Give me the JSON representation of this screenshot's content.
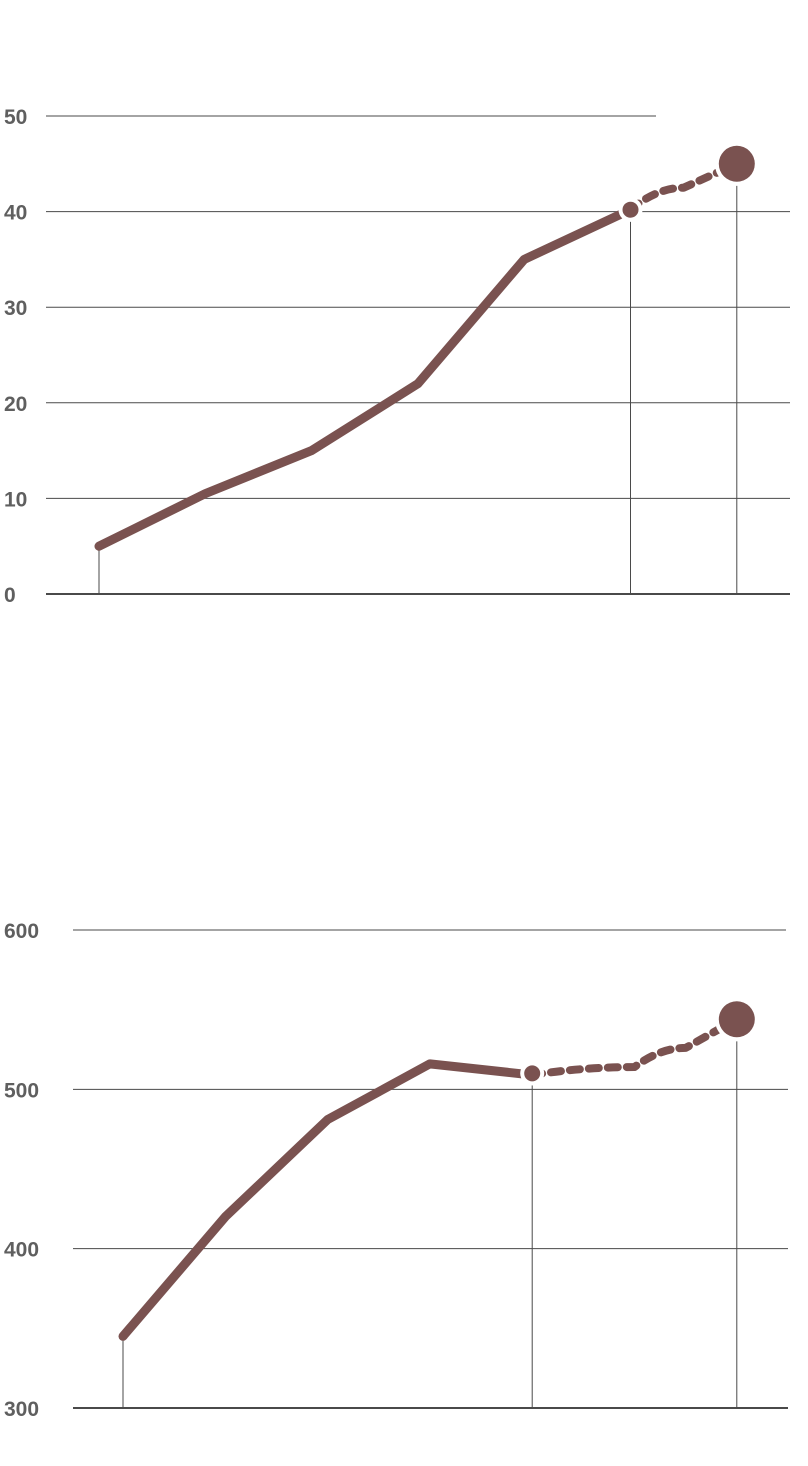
{
  "colors": {
    "series": "#7a5250",
    "grid": "#4a4a4a",
    "tick_text": "#5f5f5f",
    "background": "#ffffff"
  },
  "chart_data": [
    {
      "type": "line",
      "title": "",
      "xlabel": "",
      "ylabel": "",
      "ylim": [
        0,
        50
      ],
      "yticks": [
        "0",
        "10",
        "20",
        "30",
        "40",
        "50"
      ],
      "grid": true,
      "legend": "none",
      "series": [
        {
          "style": "solid",
          "x": [
            0,
            1,
            2,
            3,
            4,
            5
          ],
          "values": [
            5,
            10.5,
            15,
            22,
            35,
            40.2
          ]
        },
        {
          "style": "dotted",
          "x": [
            5,
            5.5,
            6
          ],
          "values": [
            40.2,
            42.5,
            45
          ]
        }
      ],
      "markers": [
        {
          "x": 5,
          "value": 40.2,
          "size": "small"
        },
        {
          "x": 6,
          "value": 45,
          "size": "large"
        }
      ],
      "droplines_at_x": [
        0,
        5,
        6
      ]
    },
    {
      "type": "line",
      "title": "",
      "xlabel": "",
      "ylabel": "",
      "ylim": [
        300,
        600
      ],
      "yticks": [
        "300",
        "400",
        "500",
        "600"
      ],
      "grid": true,
      "legend": "none",
      "series": [
        {
          "style": "solid",
          "x": [
            0,
            1,
            2,
            3,
            4
          ],
          "values": [
            345,
            420,
            481,
            516,
            509
          ]
        },
        {
          "style": "dotted",
          "x": [
            4,
            5,
            5.5,
            6
          ],
          "values": [
            509,
            514,
            526,
            544
          ]
        }
      ],
      "markers": [
        {
          "x": 4,
          "value": 510,
          "size": "small"
        },
        {
          "x": 6,
          "value": 544,
          "size": "large"
        }
      ],
      "droplines_at_x": [
        0,
        4,
        6
      ]
    }
  ]
}
